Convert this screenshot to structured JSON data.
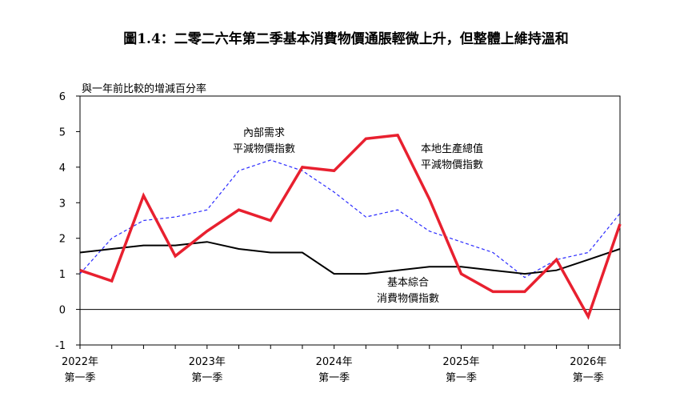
{
  "chart_data": {
    "type": "line",
    "title": "圖1.4：二零二六年第二季基本消費物價通脹輕微上升，但整體上維持溫和",
    "ylabel": "與一年前比較的增減百分率",
    "ylim": [
      -1,
      6
    ],
    "yticks": [
      "6",
      "5",
      "4",
      "3",
      "2",
      "1",
      "0",
      "-1"
    ],
    "x_year_labels": [
      "2022年",
      "2023年",
      "2024年",
      "2025年",
      "2026年"
    ],
    "x_quarter_labels": [
      "第一季",
      "第一季",
      "第一季",
      "第一季",
      "第一季"
    ],
    "x": [
      "2022 Q1",
      "2022 Q2",
      "2022 Q3",
      "2022 Q4",
      "2023 Q1",
      "2023 Q2",
      "2023 Q3",
      "2023 Q4",
      "2024 Q1",
      "2024 Q2",
      "2024 Q3",
      "2024 Q4",
      "2025 Q1",
      "2025 Q2",
      "2025 Q3",
      "2025 Q4",
      "2026 Q1",
      "2026 Q2"
    ],
    "series": [
      {
        "name": "本地生產總值平減物價指數",
        "label_lines": [
          "本地生產總值",
          "平減物價指數"
        ],
        "color": "#e8202f",
        "style": "solid-thick",
        "values": [
          1.1,
          0.8,
          3.2,
          1.5,
          2.2,
          2.8,
          2.5,
          4.0,
          3.9,
          4.8,
          4.9,
          3.1,
          1.0,
          0.5,
          0.5,
          1.4,
          -0.2,
          2.4
        ]
      },
      {
        "name": "內部需求平減物價指數",
        "label_lines": [
          "內部需求",
          "平減物價指數"
        ],
        "color": "#2a2aff",
        "style": "dashed",
        "values": [
          1.0,
          2.0,
          2.5,
          2.6,
          2.8,
          3.9,
          4.2,
          3.9,
          3.3,
          2.6,
          2.8,
          2.2,
          1.9,
          1.6,
          0.9,
          1.4,
          1.6,
          2.7
        ]
      },
      {
        "name": "基本綜合消費物價指數",
        "label_lines": [
          "基本綜合",
          "消費物價指數"
        ],
        "color": "#000000",
        "style": "solid",
        "values": [
          1.6,
          1.7,
          1.8,
          1.8,
          1.9,
          1.7,
          1.6,
          1.6,
          1.0,
          1.0,
          1.1,
          1.2,
          1.2,
          1.1,
          1.0,
          1.1,
          1.4,
          1.7
        ]
      }
    ],
    "grid": false,
    "zero_line": true
  }
}
